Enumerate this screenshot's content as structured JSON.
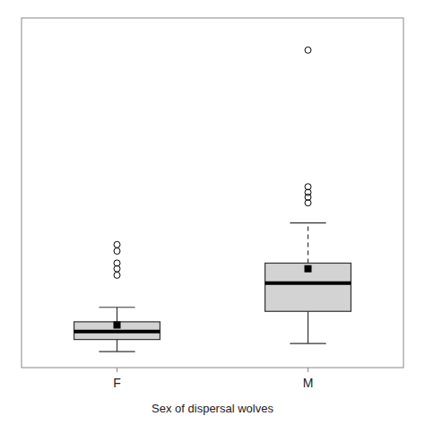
{
  "chart_data": {
    "type": "box",
    "xlabel": "Sex of dispersal wolves",
    "categories": [
      "F",
      "M"
    ],
    "boxes": [
      {
        "q1": 20,
        "median": 30,
        "q3": 42,
        "mean": 38,
        "whisker_low": 5,
        "whisker_high": 60,
        "outliers": [
          100,
          108,
          115,
          130,
          138
        ],
        "line_style": "solid"
      },
      {
        "q1": 55,
        "median": 90,
        "q3": 115,
        "mean": 108,
        "whisker_low": 15,
        "whisker_high": 165,
        "outliers": [
          190,
          197,
          203,
          210,
          380
        ],
        "line_style": "dashed"
      }
    ],
    "ylim": [
      -15,
      420
    ],
    "tick_labels": "x",
    "color": "#d3d3d3",
    "marker": "square"
  }
}
